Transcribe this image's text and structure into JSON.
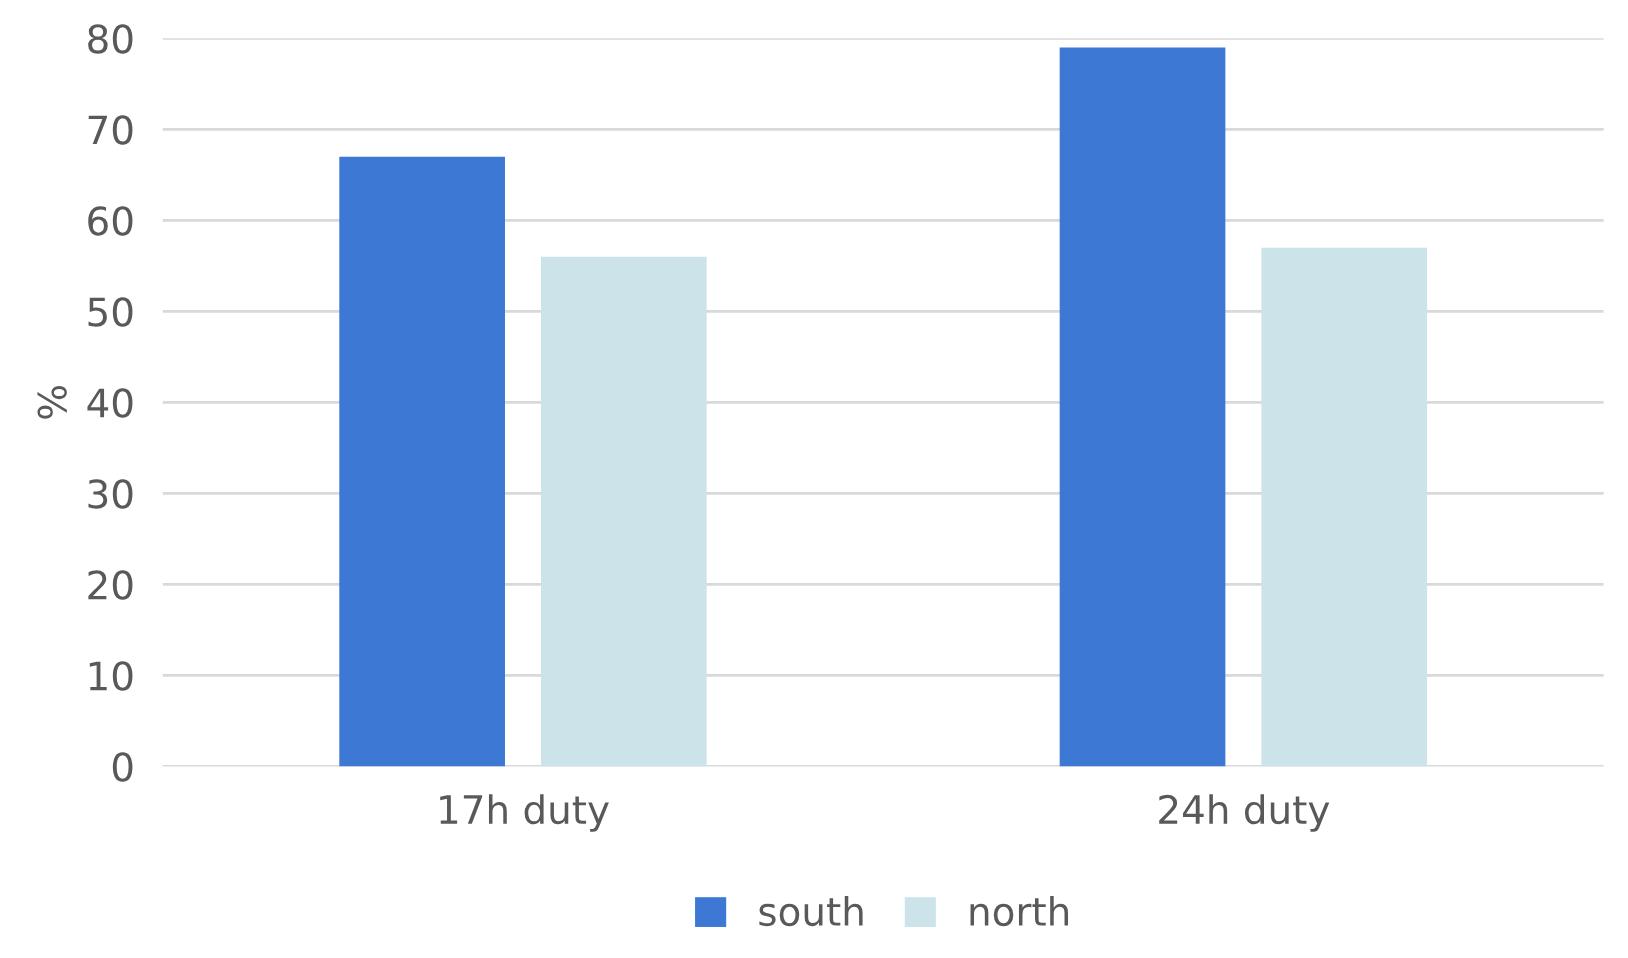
{
  "chart_data": {
    "type": "bar",
    "ylabel": "%",
    "categories": [
      "17h duty",
      "24h duty"
    ],
    "series": [
      {
        "name": "south",
        "color": "#3c78d4",
        "values": [
          67,
          79
        ]
      },
      {
        "name": "north",
        "color": "#cce3ea",
        "values": [
          56,
          57
        ]
      }
    ],
    "ylim": [
      0,
      80
    ],
    "yticks": [
      0,
      10,
      20,
      30,
      40,
      50,
      60,
      70,
      80
    ],
    "grid": "y",
    "legend": "bottom"
  }
}
